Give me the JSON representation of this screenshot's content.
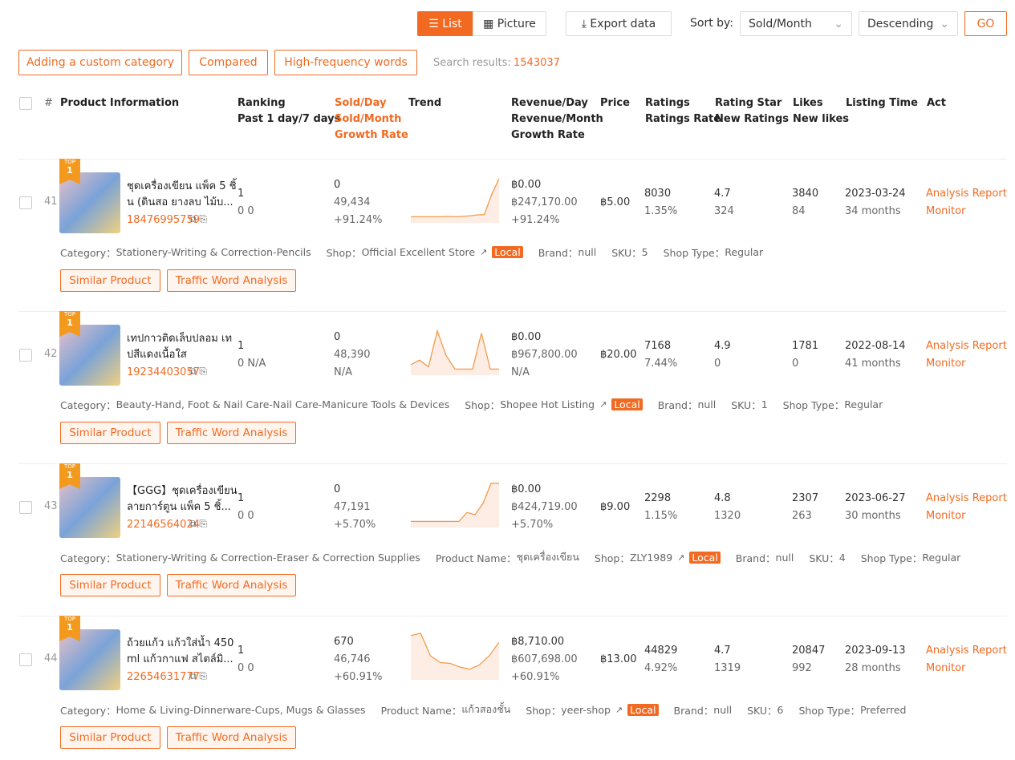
{
  "toolbar": {
    "view_list": "List",
    "view_picture": "Picture",
    "export": "Export data",
    "sort_label": "Sort by:",
    "sort_field": "Sold/Month",
    "sort_order": "Descending",
    "go": "GO"
  },
  "filters": {
    "buttons": [
      "Adding a custom category",
      "Compared",
      "High-frequency words"
    ],
    "search_label": "Search results:",
    "search_count": "1543037"
  },
  "header": {
    "index": "#",
    "product": "Product Information",
    "ranking": [
      "Ranking",
      "Past 1 day/7 days"
    ],
    "sold": [
      "Sold/Day",
      "Sold/Month",
      "Growth Rate"
    ],
    "trend": "Trend",
    "revenue": [
      "Revenue/Day",
      "Revenue/Month",
      "Growth Rate"
    ],
    "price": "Price",
    "ratings": [
      "Ratings",
      "Ratings Rate"
    ],
    "rating_star": [
      "Rating Star",
      "New Ratings"
    ],
    "likes": [
      "Likes",
      "New likes"
    ],
    "listing_time": "Listing Time",
    "act": "Act"
  },
  "rows": [
    {
      "index": "41",
      "badge": [
        "TOP",
        "1"
      ],
      "title": [
        "ชุดเครื่องเขียน แพ็ค 5 ชิ้",
        "น (ดินสอ ยางลบ ไม้บ..."
      ],
      "id": "18476995759",
      "ranking": [
        "1",
        "0 0"
      ],
      "sold": [
        "0",
        "49,434",
        "+91.24%"
      ],
      "trend": [
        10,
        10,
        10,
        10,
        10,
        11,
        10,
        11,
        12,
        14,
        15,
        60,
        95
      ],
      "revenue": [
        "฿0.00",
        "฿247,170.00",
        "+91.24%"
      ],
      "price": "฿5.00",
      "ratings": [
        "8030",
        "1.35%"
      ],
      "rating_star": [
        "4.7",
        "324"
      ],
      "likes": [
        "3840",
        "84"
      ],
      "listing": [
        "2023-03-24",
        "34 months"
      ],
      "act": [
        "Analysis Report",
        "Monitor"
      ],
      "details": [
        {
          "label": "Category：",
          "value": "Stationery-Writing & Correction-Pencils"
        },
        {
          "label": "Shop：",
          "value": "Official Excellent Store",
          "tag": "Local"
        },
        {
          "label": "Brand：",
          "value": "null"
        },
        {
          "label": "SKU：",
          "value": "5"
        },
        {
          "label": "Shop Type：",
          "value": "Regular"
        }
      ],
      "buttons": [
        "Similar Product",
        "Traffic Word Analysis"
      ]
    },
    {
      "index": "42",
      "badge": [
        "TOP",
        "1"
      ],
      "title": [
        "เทปกาวติดเล็บปลอม เท",
        "ปสีแดงเนื้อใส"
      ],
      "id": "19234403057",
      "ranking": [
        "1",
        "0 N/A"
      ],
      "sold": [
        "0",
        "48,390",
        "N/A"
      ],
      "trend": [
        20,
        30,
        15,
        95,
        40,
        10,
        10,
        10,
        90,
        10,
        10
      ],
      "revenue": [
        "฿0.00",
        "฿967,800.00",
        "N/A"
      ],
      "price": "฿20.00",
      "ratings": [
        "7168",
        "7.44%"
      ],
      "rating_star": [
        "4.9",
        "0"
      ],
      "likes": [
        "1781",
        "0"
      ],
      "listing": [
        "2022-08-14",
        "41 months"
      ],
      "act": [
        "Analysis Report",
        "Monitor"
      ],
      "details": [
        {
          "label": "Category：",
          "value": "Beauty-Hand, Foot & Nail Care-Nail Care-Manicure Tools & Devices"
        },
        {
          "label": "Shop：",
          "value": "Shopee Hot Listing",
          "tag": "Local"
        },
        {
          "label": "Brand：",
          "value": "null"
        },
        {
          "label": "SKU：",
          "value": "1"
        },
        {
          "label": "Shop Type：",
          "value": "Regular"
        }
      ],
      "buttons": [
        "Similar Product",
        "Traffic Word Analysis"
      ]
    },
    {
      "index": "43",
      "badge": [
        "TOP",
        "1"
      ],
      "title": [
        "【GGG】ชุดเครื่องเขียน",
        "ลายการ์ตูน แพ็ค 5 ชิ้..."
      ],
      "id": "22146564024",
      "ranking": [
        "1",
        "0 0"
      ],
      "sold": [
        "0",
        "47,191",
        "+5.70%"
      ],
      "trend": [
        10,
        10,
        10,
        10,
        10,
        10,
        10,
        30,
        25,
        50,
        95,
        95
      ],
      "revenue": [
        "฿0.00",
        "฿424,719.00",
        "+5.70%"
      ],
      "price": "฿9.00",
      "ratings": [
        "2298",
        "1.15%"
      ],
      "rating_star": [
        "4.8",
        "1320"
      ],
      "likes": [
        "2307",
        "263"
      ],
      "listing": [
        "2023-06-27",
        "30 months"
      ],
      "act": [
        "Analysis Report",
        "Monitor"
      ],
      "details": [
        {
          "label": "Category：",
          "value": "Stationery-Writing & Correction-Eraser & Correction Supplies"
        },
        {
          "label": "Product Name：",
          "value": "ชุดเครื่องเขียน"
        },
        {
          "label": "Shop：",
          "value": "ZLY1989",
          "tag": "Local"
        },
        {
          "label": "Brand：",
          "value": "null"
        },
        {
          "label": "SKU：",
          "value": "4"
        },
        {
          "label": "Shop Type：",
          "value": "Regular"
        }
      ],
      "buttons": [
        "Similar Product",
        "Traffic Word Analysis"
      ]
    },
    {
      "index": "44",
      "badge": [
        "TOP",
        "1"
      ],
      "title": [
        "ถ้วยแก้ว แก้วใส่น้ำ 450",
        "ml แก้วกาแฟ สไตล์มิ..."
      ],
      "id": "22654631777",
      "ranking": [
        "1",
        "0 0"
      ],
      "sold": [
        "670",
        "46,746",
        "+60.91%"
      ],
      "trend": [
        95,
        100,
        50,
        35,
        33,
        25,
        20,
        30,
        50,
        80
      ],
      "revenue": [
        "฿8,710.00",
        "฿607,698.00",
        "+60.91%"
      ],
      "price": "฿13.00",
      "ratings": [
        "44829",
        "4.92%"
      ],
      "rating_star": [
        "4.7",
        "1319"
      ],
      "likes": [
        "20847",
        "992"
      ],
      "listing": [
        "2023-09-13",
        "28 months"
      ],
      "act": [
        "Analysis Report",
        "Monitor"
      ],
      "details": [
        {
          "label": "Category：",
          "value": "Home & Living-Dinnerware-Cups, Mugs & Glasses"
        },
        {
          "label": "Product Name：",
          "value": "แก้วสองชั้น"
        },
        {
          "label": "Shop：",
          "value": "yeer-shop",
          "tag": "Local"
        },
        {
          "label": "Brand：",
          "value": "null"
        },
        {
          "label": "SKU：",
          "value": "6"
        },
        {
          "label": "Shop Type：",
          "value": "Preferred"
        }
      ],
      "buttons": [
        "Similar Product",
        "Traffic Word Analysis"
      ]
    }
  ]
}
